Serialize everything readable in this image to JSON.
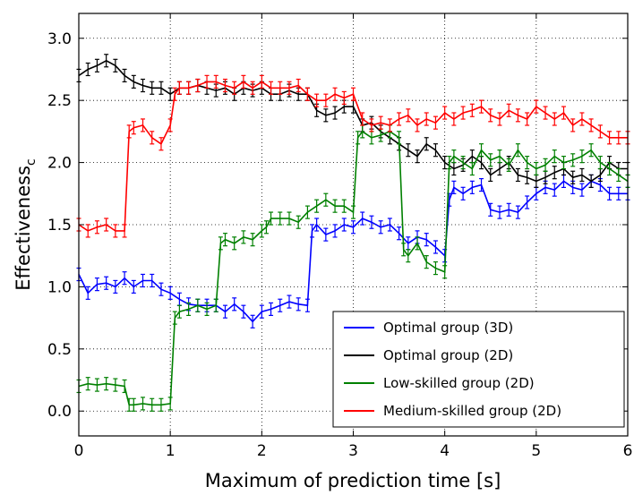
{
  "chart_data": {
    "type": "line",
    "xlabel_main": "Maximum of prediction time",
    "xlabel_unit": "[s]",
    "ylabel_main": "Effectiveness",
    "ylabel_sub": "c",
    "xlim": [
      0,
      6
    ],
    "ylim": [
      -0.2,
      3.2
    ],
    "xticks": [
      "0",
      "1",
      "2",
      "3",
      "4",
      "5",
      "6"
    ],
    "yticks": [
      "0.0",
      "0.5",
      "1.0",
      "1.5",
      "2.0",
      "2.5",
      "3.0"
    ],
    "grid": true,
    "legend_position": "bottom-right",
    "series": [
      {
        "name": "Optimal group (3D)",
        "color": "#0000ff",
        "x": [
          0.0,
          0.1,
          0.2,
          0.3,
          0.4,
          0.5,
          0.6,
          0.7,
          0.8,
          0.9,
          1.0,
          1.1,
          1.2,
          1.3,
          1.4,
          1.5,
          1.6,
          1.7,
          1.8,
          1.9,
          2.0,
          2.1,
          2.2,
          2.3,
          2.4,
          2.5,
          2.55,
          2.6,
          2.7,
          2.8,
          2.9,
          3.0,
          3.1,
          3.2,
          3.3,
          3.4,
          3.5,
          3.6,
          3.7,
          3.8,
          3.9,
          4.0,
          4.05,
          4.1,
          4.2,
          4.3,
          4.4,
          4.5,
          4.6,
          4.7,
          4.8,
          4.9,
          5.0,
          5.1,
          5.2,
          5.3,
          5.4,
          5.5,
          5.6,
          5.7,
          5.8,
          5.9,
          6.0
        ],
        "y": [
          1.1,
          0.95,
          1.02,
          1.03,
          1.0,
          1.07,
          1.0,
          1.05,
          1.05,
          0.98,
          0.95,
          0.9,
          0.86,
          0.85,
          0.85,
          0.85,
          0.8,
          0.86,
          0.8,
          0.72,
          0.8,
          0.82,
          0.85,
          0.88,
          0.86,
          0.85,
          1.45,
          1.5,
          1.42,
          1.45,
          1.5,
          1.48,
          1.55,
          1.52,
          1.48,
          1.5,
          1.43,
          1.35,
          1.4,
          1.38,
          1.32,
          1.25,
          1.7,
          1.8,
          1.75,
          1.8,
          1.82,
          1.62,
          1.6,
          1.62,
          1.6,
          1.68,
          1.75,
          1.8,
          1.78,
          1.85,
          1.8,
          1.78,
          1.85,
          1.82,
          1.75,
          1.75,
          1.75
        ]
      },
      {
        "name": "Optimal group (2D)",
        "color": "#000000",
        "x": [
          0.0,
          0.1,
          0.2,
          0.3,
          0.4,
          0.5,
          0.6,
          0.7,
          0.8,
          0.9,
          1.0,
          1.1,
          1.2,
          1.3,
          1.4,
          1.5,
          1.6,
          1.7,
          1.8,
          1.9,
          2.0,
          2.1,
          2.2,
          2.3,
          2.4,
          2.5,
          2.6,
          2.7,
          2.8,
          2.9,
          3.0,
          3.1,
          3.2,
          3.3,
          3.4,
          3.5,
          3.6,
          3.7,
          3.8,
          3.9,
          4.0,
          4.1,
          4.2,
          4.3,
          4.4,
          4.5,
          4.6,
          4.7,
          4.8,
          4.9,
          5.0,
          5.1,
          5.2,
          5.3,
          5.4,
          5.5,
          5.6,
          5.7,
          5.8,
          5.9,
          6.0
        ],
        "y": [
          2.7,
          2.75,
          2.78,
          2.82,
          2.78,
          2.7,
          2.65,
          2.62,
          2.6,
          2.6,
          2.55,
          2.6,
          2.6,
          2.62,
          2.6,
          2.58,
          2.6,
          2.55,
          2.6,
          2.58,
          2.6,
          2.55,
          2.55,
          2.58,
          2.55,
          2.55,
          2.42,
          2.38,
          2.4,
          2.45,
          2.45,
          2.3,
          2.32,
          2.25,
          2.2,
          2.15,
          2.1,
          2.05,
          2.15,
          2.1,
          2.0,
          1.95,
          1.98,
          2.05,
          2.0,
          1.9,
          1.95,
          2.0,
          1.9,
          1.88,
          1.85,
          1.88,
          1.92,
          1.95,
          1.88,
          1.9,
          1.85,
          1.9,
          2.0,
          1.95,
          1.95
        ]
      },
      {
        "name": "Low-skilled group (2D)",
        "color": "#008000",
        "x": [
          0.0,
          0.1,
          0.2,
          0.3,
          0.4,
          0.5,
          0.55,
          0.6,
          0.7,
          0.8,
          0.9,
          1.0,
          1.05,
          1.1,
          1.2,
          1.3,
          1.4,
          1.5,
          1.55,
          1.6,
          1.7,
          1.8,
          1.9,
          2.0,
          2.05,
          2.1,
          2.2,
          2.3,
          2.4,
          2.5,
          2.6,
          2.7,
          2.8,
          2.9,
          3.0,
          3.05,
          3.1,
          3.2,
          3.3,
          3.4,
          3.5,
          3.55,
          3.6,
          3.7,
          3.8,
          3.9,
          4.0,
          4.05,
          4.1,
          4.2,
          4.3,
          4.4,
          4.5,
          4.6,
          4.7,
          4.8,
          4.9,
          5.0,
          5.1,
          5.2,
          5.3,
          5.4,
          5.5,
          5.6,
          5.7,
          5.8,
          5.9,
          6.0
        ],
        "y": [
          0.2,
          0.22,
          0.21,
          0.22,
          0.21,
          0.2,
          0.05,
          0.05,
          0.06,
          0.05,
          0.05,
          0.06,
          0.75,
          0.8,
          0.82,
          0.85,
          0.82,
          0.85,
          1.35,
          1.38,
          1.35,
          1.4,
          1.38,
          1.45,
          1.48,
          1.55,
          1.55,
          1.55,
          1.52,
          1.6,
          1.65,
          1.7,
          1.65,
          1.65,
          1.6,
          2.2,
          2.25,
          2.2,
          2.22,
          2.25,
          2.2,
          1.3,
          1.25,
          1.35,
          1.2,
          1.15,
          1.12,
          2.0,
          2.05,
          2.0,
          1.95,
          2.1,
          2.02,
          2.05,
          1.98,
          2.1,
          2.0,
          1.95,
          1.98,
          2.05,
          2.0,
          2.02,
          2.05,
          2.1,
          2.0,
          1.95,
          1.9,
          1.85
        ]
      },
      {
        "name": "Medium-skilled group (2D)",
        "color": "#ff0000",
        "x": [
          0.0,
          0.1,
          0.2,
          0.3,
          0.4,
          0.5,
          0.55,
          0.6,
          0.7,
          0.8,
          0.9,
          1.0,
          1.05,
          1.1,
          1.2,
          1.3,
          1.4,
          1.5,
          1.6,
          1.7,
          1.8,
          1.9,
          2.0,
          2.1,
          2.2,
          2.3,
          2.4,
          2.5,
          2.6,
          2.7,
          2.8,
          2.9,
          3.0,
          3.1,
          3.2,
          3.3,
          3.4,
          3.5,
          3.6,
          3.7,
          3.8,
          3.9,
          4.0,
          4.1,
          4.2,
          4.3,
          4.4,
          4.5,
          4.6,
          4.7,
          4.8,
          4.9,
          5.0,
          5.1,
          5.2,
          5.3,
          5.4,
          5.5,
          5.6,
          5.7,
          5.8,
          5.9,
          6.0
        ],
        "y": [
          1.5,
          1.45,
          1.48,
          1.5,
          1.45,
          1.45,
          2.25,
          2.28,
          2.3,
          2.2,
          2.15,
          2.3,
          2.55,
          2.6,
          2.6,
          2.62,
          2.65,
          2.65,
          2.62,
          2.6,
          2.65,
          2.6,
          2.65,
          2.6,
          2.6,
          2.6,
          2.62,
          2.55,
          2.5,
          2.5,
          2.55,
          2.52,
          2.55,
          2.35,
          2.3,
          2.32,
          2.3,
          2.35,
          2.38,
          2.3,
          2.35,
          2.32,
          2.4,
          2.35,
          2.4,
          2.42,
          2.45,
          2.38,
          2.35,
          2.42,
          2.38,
          2.35,
          2.45,
          2.4,
          2.35,
          2.4,
          2.3,
          2.35,
          2.3,
          2.25,
          2.2,
          2.2,
          2.2
        ]
      }
    ]
  }
}
